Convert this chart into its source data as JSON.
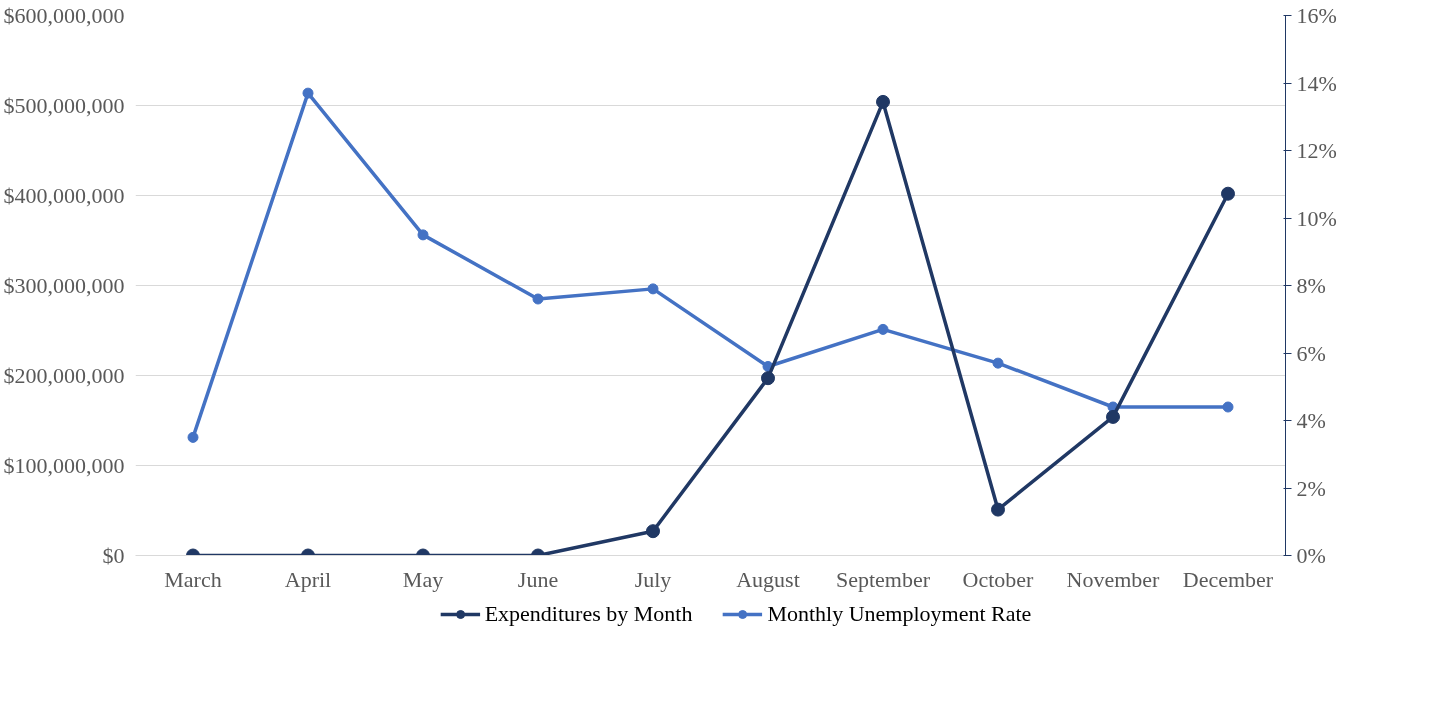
{
  "chart_data": {
    "type": "line",
    "categories": [
      "March",
      "April",
      "May",
      "June",
      "July",
      "August",
      "September",
      "October",
      "November",
      "December"
    ],
    "series": [
      {
        "name": "Expenditures by Month",
        "color": "#203864",
        "values": [
          0,
          0,
          0,
          0,
          27000000,
          197000000,
          504000000,
          51000000,
          154000000,
          402000000
        ]
      },
      {
        "name": "Monthly Unemployment Rate",
        "color": "#4472c4",
        "axis": "y2",
        "values": [
          3.5,
          13.7,
          9.5,
          7.6,
          7.9,
          5.6,
          6.7,
          5.7,
          4.4,
          4.4
        ]
      }
    ],
    "ylim": [
      0,
      600000000
    ],
    "yticks": [
      {
        "value": 0,
        "label": "$0"
      },
      {
        "value": 100000000,
        "label": "$100,000,000"
      },
      {
        "value": 200000000,
        "label": "$200,000,000"
      },
      {
        "value": 300000000,
        "label": "$300,000,000"
      },
      {
        "value": 400000000,
        "label": "$400,000,000"
      },
      {
        "value": 500000000,
        "label": "$500,000,000"
      },
      {
        "value": 600000000,
        "label": "$600,000,000"
      }
    ],
    "y2lim": [
      0,
      16
    ],
    "y2ticks": [
      {
        "value": 0,
        "label": "0%"
      },
      {
        "value": 2,
        "label": "2%"
      },
      {
        "value": 4,
        "label": "4%"
      },
      {
        "value": 6,
        "label": "6%"
      },
      {
        "value": 8,
        "label": "8%"
      },
      {
        "value": 10,
        "label": "10%"
      },
      {
        "value": 12,
        "label": "12%"
      },
      {
        "value": 14,
        "label": "14%"
      },
      {
        "value": 16,
        "label": "16%"
      }
    ],
    "grid": "y",
    "legend": "bottom",
    "marker": "circle",
    "line_style": "solid"
  }
}
